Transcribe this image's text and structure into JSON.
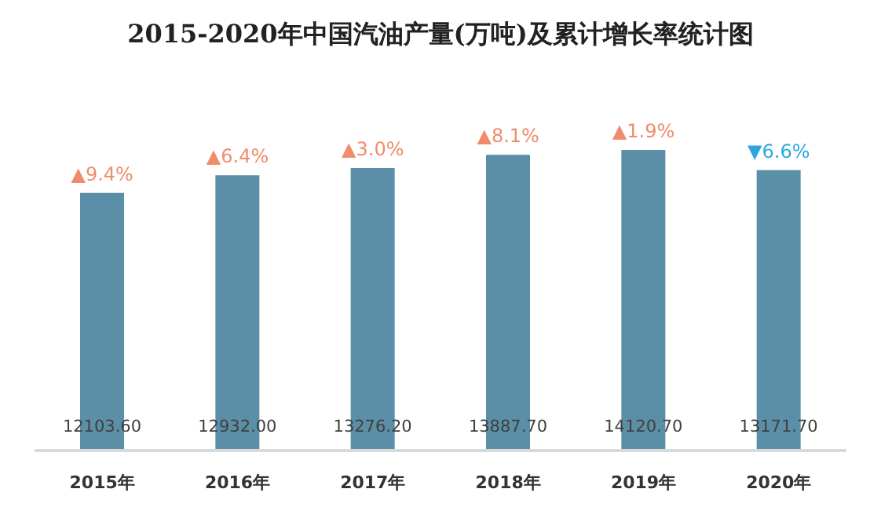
{
  "chart_data": {
    "type": "bar",
    "title": "2015-2020年中国汽油产量(万吨)及累计增长率统计图",
    "categories": [
      "2015年",
      "2016年",
      "2017年",
      "2018年",
      "2019年",
      "2020年"
    ],
    "values": [
      12103.6,
      12932.0,
      13276.2,
      13887.7,
      14120.7,
      13171.7
    ],
    "value_labels": [
      "12103.60",
      "12932.00",
      "13276.20",
      "13887.70",
      "14120.70",
      "13171.70"
    ],
    "color": "#5b8fa8",
    "tick_labels": "x",
    "annotations": [
      {
        "text": "▲9.4%",
        "x": "2015年",
        "y": 12103.6
      },
      {
        "text": "▲6.4%",
        "x": "2016年",
        "y": 12932.0
      },
      {
        "text": "▲3.0%",
        "x": "2017年",
        "y": 13276.2
      },
      {
        "text": "▲8.1%",
        "x": "2018年",
        "y": 13887.7
      },
      {
        "text": "▲1.9%",
        "x": "2019年",
        "y": 14120.7
      },
      {
        "text": "▼6.6%",
        "x": "2020年",
        "y": 13171.7
      }
    ]
  }
}
